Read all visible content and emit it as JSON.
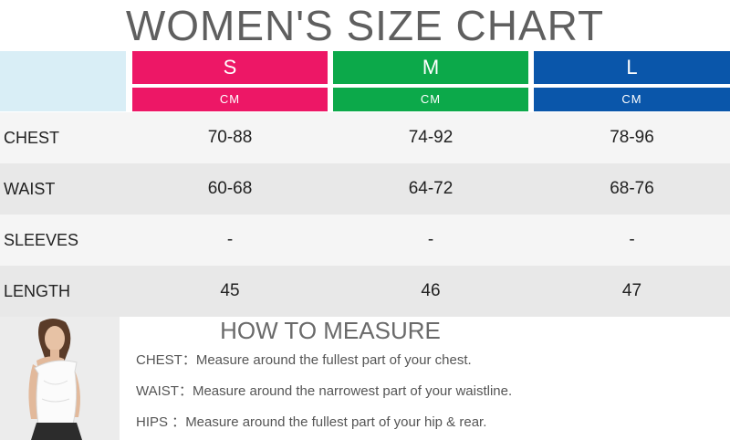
{
  "title": "WOMEN'S SIZE CHART",
  "sizes": [
    {
      "label": "S",
      "unit": "CM",
      "color": "#ed1766"
    },
    {
      "label": "M",
      "unit": "CM",
      "color": "#0ca94a"
    },
    {
      "label": "L",
      "unit": "CM",
      "color": "#0a56aa"
    }
  ],
  "rows": [
    {
      "label": "CHEST",
      "values": [
        "70-88",
        "74-92",
        "78-96"
      ]
    },
    {
      "label": "WAIST",
      "values": [
        "60-68",
        "64-72",
        "68-76"
      ]
    },
    {
      "label": "SLEEVES",
      "values": [
        "-",
        "-",
        "-"
      ]
    },
    {
      "label": "LENGTH",
      "values": [
        "45",
        "46",
        "47"
      ]
    }
  ],
  "measure": {
    "title": "HOW TO MEASURE",
    "items": [
      {
        "key": "CHEST：",
        "desc": "Measure around the fullest part of your chest."
      },
      {
        "key": "WAIST：",
        "desc": "Measure around the narrowest part of your waistline."
      },
      {
        "key": "HIPS ：",
        "desc": "Measure around the fullest part of your hip & rear."
      }
    ]
  },
  "chart_data": {
    "type": "table",
    "columns": [
      "S",
      "M",
      "L"
    ],
    "unit": "CM",
    "rows": [
      {
        "label": "CHEST",
        "values": [
          "70-88",
          "74-92",
          "78-96"
        ]
      },
      {
        "label": "WAIST",
        "values": [
          "60-68",
          "64-72",
          "68-76"
        ]
      },
      {
        "label": "SLEEVES",
        "values": [
          "-",
          "-",
          "-"
        ]
      },
      {
        "label": "LENGTH",
        "values": [
          "45",
          "46",
          "47"
        ]
      }
    ],
    "title": "WOMEN'S SIZE CHART"
  }
}
